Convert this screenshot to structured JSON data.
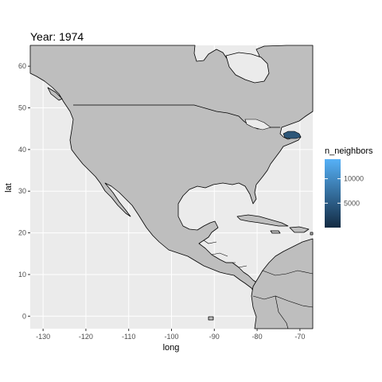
{
  "plot": {
    "title": "Year: 1974",
    "xlabel": "long",
    "ylabel": "lat",
    "xlim": [
      -133,
      -67
    ],
    "ylim": [
      -3,
      65
    ],
    "x_ticks": [
      {
        "value": -130,
        "label": "-130"
      },
      {
        "value": -120,
        "label": "-120"
      },
      {
        "value": -110,
        "label": "-110"
      },
      {
        "value": -100,
        "label": "-100"
      },
      {
        "value": -90,
        "label": "-90"
      },
      {
        "value": -80,
        "label": "-80"
      },
      {
        "value": -70,
        "label": "-70"
      }
    ],
    "y_ticks": [
      {
        "value": 0,
        "label": "0"
      },
      {
        "value": 10,
        "label": "10"
      },
      {
        "value": 20,
        "label": "20"
      },
      {
        "value": 30,
        "label": "30"
      },
      {
        "value": 40,
        "label": "40"
      },
      {
        "value": 50,
        "label": "50"
      },
      {
        "value": 60,
        "label": "60"
      }
    ],
    "panel_color": "#ebebeb",
    "land_color": "#bebebe",
    "grid_color": "#ffffff"
  },
  "legend": {
    "title": "n_neighbors",
    "range": [
      0,
      14000
    ],
    "low_color": "#132b43",
    "high_color": "#56b1f7",
    "ticks": [
      {
        "value": 5000,
        "label": "5000"
      },
      {
        "value": 10000,
        "label": "10000"
      }
    ]
  },
  "chart_data": {
    "type": "map",
    "title": "Year: 1974",
    "xlabel": "long",
    "ylabel": "lat",
    "xlim": [
      -133,
      -67
    ],
    "ylim": [
      -3,
      65
    ],
    "grid": true,
    "legend_position": "right",
    "highlighted_region": {
      "lon": -72.5,
      "lat": 42.3,
      "n_neighbors": 3300,
      "color": "#2d5678"
    }
  }
}
